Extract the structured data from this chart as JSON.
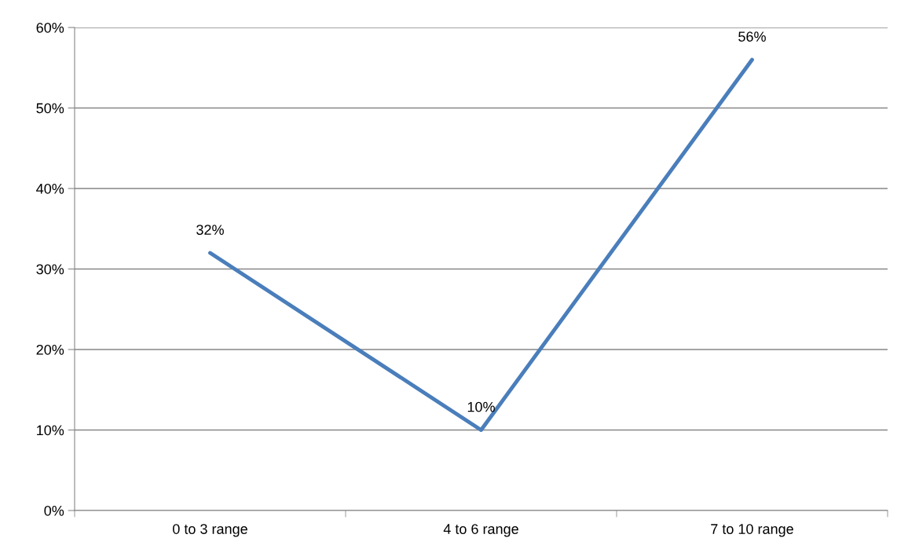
{
  "chart_data": {
    "type": "line",
    "categories": [
      "0 to 3 range",
      "4 to 6 range",
      "7 to 10 range"
    ],
    "series": [
      {
        "color": "#4a7ebb",
        "values": [
          32,
          10,
          56
        ],
        "value_labels": [
          "32%",
          "10%",
          "56%"
        ]
      }
    ],
    "ylim": [
      0,
      60
    ],
    "yticks": [
      {
        "value": 0,
        "label": "0%"
      },
      {
        "value": 10,
        "label": "10%"
      },
      {
        "value": 20,
        "label": "20%"
      },
      {
        "value": 30,
        "label": "30%"
      },
      {
        "value": 40,
        "label": "40%"
      },
      {
        "value": 50,
        "label": "50%"
      },
      {
        "value": 60,
        "label": "60%"
      }
    ],
    "grid": "y",
    "marker": "none",
    "line_style": "solid"
  }
}
